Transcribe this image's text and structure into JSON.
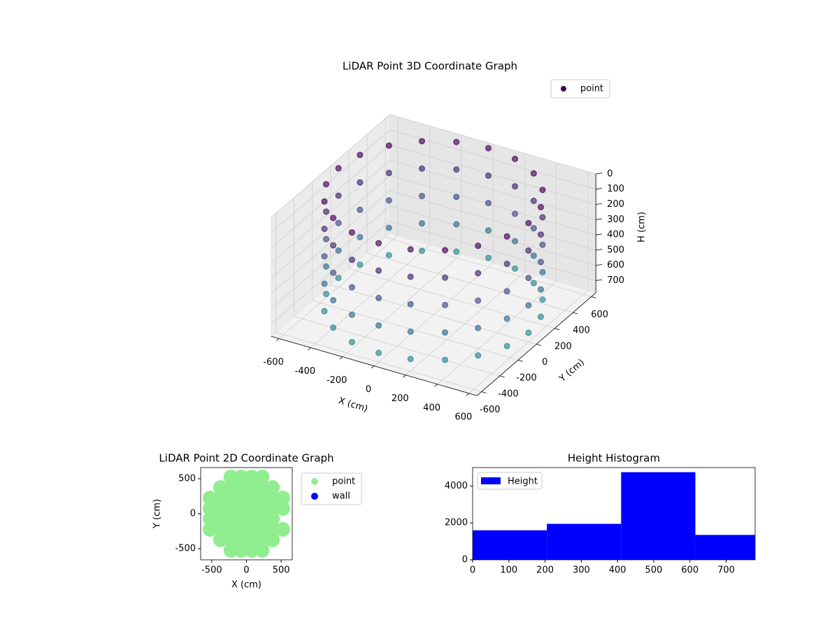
{
  "chart_data": [
    {
      "type": "scatter3d",
      "title": "LiDAR Point 3D Coordinate Graph",
      "x_label": "X (cm)",
      "y_label": "Y (cm)",
      "z_label": "H (cm)",
      "xlim": [
        -650,
        650
      ],
      "ylim": [
        -650,
        650
      ],
      "zlim": [
        780,
        0
      ],
      "xticks": [
        -600,
        -400,
        -200,
        0,
        200,
        400,
        600
      ],
      "yticks": [
        -600,
        -400,
        -200,
        0,
        200,
        400,
        600
      ],
      "zticks": [
        0,
        100,
        200,
        300,
        400,
        500,
        600,
        700
      ],
      "colormap": [
        "#440154",
        "#3b528b",
        "#21918c"
      ],
      "legend": "upper right",
      "series": [
        {
          "name": "point",
          "color": "#440154",
          "x": [
            600,
            571,
            485,
            353,
            185,
            0,
            -185,
            -353,
            -485,
            -571,
            -600,
            -571,
            -485,
            -353,
            -185,
            0,
            185,
            353,
            485,
            571,
            600,
            571,
            485,
            353,
            185,
            0,
            -185,
            -353,
            -485,
            -571,
            -600,
            -571,
            -485,
            -353,
            -185,
            0,
            185,
            353,
            485,
            571,
            600,
            571,
            485,
            353,
            185,
            0,
            -185,
            -353,
            -485,
            -571,
            -600,
            -571,
            -485,
            -353,
            -185,
            0,
            185,
            353,
            485,
            571,
            600,
            571,
            485,
            353,
            185,
            0,
            -185,
            -353,
            -485,
            -571,
            -600,
            -571,
            -485,
            -353,
            -185,
            0,
            185,
            353,
            485,
            571,
            600,
            571,
            485,
            353,
            185,
            0,
            -185,
            -353,
            -485,
            -571,
            -600,
            -571,
            -485,
            -353,
            -185,
            0,
            185,
            353,
            485,
            571
          ],
          "y": [
            0,
            185,
            353,
            485,
            571,
            600,
            571,
            485,
            353,
            185,
            0,
            -185,
            -353,
            -485,
            -571,
            -600,
            -571,
            -485,
            -353,
            -185,
            0,
            185,
            353,
            485,
            571,
            600,
            571,
            485,
            353,
            185,
            0,
            -185,
            -353,
            -485,
            -571,
            -600,
            -571,
            -485,
            -353,
            -185,
            0,
            185,
            353,
            485,
            571,
            600,
            571,
            485,
            353,
            185,
            0,
            -185,
            -353,
            -485,
            -571,
            -600,
            -571,
            -485,
            -353,
            -185,
            0,
            185,
            353,
            485,
            571,
            600,
            571,
            485,
            353,
            185,
            0,
            -185,
            -353,
            -485,
            -571,
            -600,
            -571,
            -485,
            -353,
            -185,
            0,
            185,
            353,
            485,
            571,
            600,
            571,
            485,
            353,
            185,
            0,
            -185,
            -353,
            -485,
            -571,
            -600,
            -571,
            -485,
            -353,
            -185
          ],
          "h": [
            0,
            0,
            0,
            0,
            0,
            0,
            0,
            0,
            0,
            0,
            0,
            0,
            0,
            0,
            0,
            0,
            0,
            0,
            0,
            0,
            180,
            180,
            180,
            180,
            180,
            180,
            180,
            180,
            180,
            180,
            180,
            180,
            180,
            180,
            180,
            180,
            180,
            180,
            180,
            180,
            360,
            360,
            360,
            360,
            360,
            360,
            360,
            360,
            360,
            360,
            360,
            360,
            360,
            360,
            360,
            360,
            360,
            360,
            360,
            360,
            540,
            540,
            540,
            540,
            540,
            540,
            540,
            540,
            540,
            540,
            540,
            540,
            540,
            540,
            540,
            540,
            540,
            540,
            540,
            540,
            720,
            720,
            720,
            720,
            720,
            720,
            720,
            720,
            720,
            720,
            720,
            720,
            720,
            720,
            720,
            720,
            720,
            720,
            720,
            720
          ]
        }
      ]
    },
    {
      "type": "scatter",
      "title": "LiDAR Point 2D Coordinate Graph",
      "x_label": "X (cm)",
      "y_label": "Y (cm)",
      "xlim": [
        -660,
        660
      ],
      "ylim": [
        -660,
        660
      ],
      "xticks": [
        -500,
        0,
        500
      ],
      "yticks": [
        -500,
        0,
        500
      ],
      "legend": "outside right",
      "series": [
        {
          "name": "point",
          "color": "#90ee90",
          "x": [
            -525,
            -525,
            -525,
            -525,
            -375,
            -375,
            -375,
            -375,
            -375,
            -375,
            -225,
            -225,
            -225,
            -225,
            -225,
            -225,
            -225,
            -225,
            -75,
            -75,
            -75,
            -75,
            -75,
            -75,
            -75,
            -75,
            75,
            75,
            75,
            75,
            75,
            75,
            75,
            75,
            225,
            225,
            225,
            225,
            225,
            225,
            225,
            225,
            375,
            375,
            375,
            375,
            375,
            375,
            525,
            525,
            525
          ],
          "y": [
            -225,
            -75,
            75,
            225,
            -375,
            -225,
            -75,
            75,
            225,
            375,
            -525,
            -375,
            -225,
            -75,
            75,
            225,
            375,
            525,
            -525,
            -375,
            -225,
            -75,
            75,
            225,
            375,
            525,
            -525,
            -375,
            -225,
            -75,
            75,
            225,
            375,
            525,
            -525,
            -375,
            -225,
            -75,
            75,
            225,
            375,
            525,
            -375,
            -225,
            -75,
            75,
            225,
            375,
            -225,
            75,
            225
          ]
        },
        {
          "name": "wall",
          "color": "#0000ff",
          "x": [],
          "y": []
        }
      ]
    },
    {
      "type": "histogram",
      "title": "Height Histogram",
      "bins": [
        0,
        205,
        410,
        615,
        780
      ],
      "counts": [
        1600,
        1950,
        4750,
        1350
      ],
      "xlim": [
        0,
        780
      ],
      "ylim": [
        0,
        5000
      ],
      "xticks": [
        0,
        100,
        200,
        300,
        400,
        500,
        600,
        700
      ],
      "yticks": [
        0,
        2000,
        4000
      ],
      "legend": "upper left",
      "series": [
        {
          "name": "Height",
          "color": "#0000ff"
        }
      ]
    }
  ]
}
